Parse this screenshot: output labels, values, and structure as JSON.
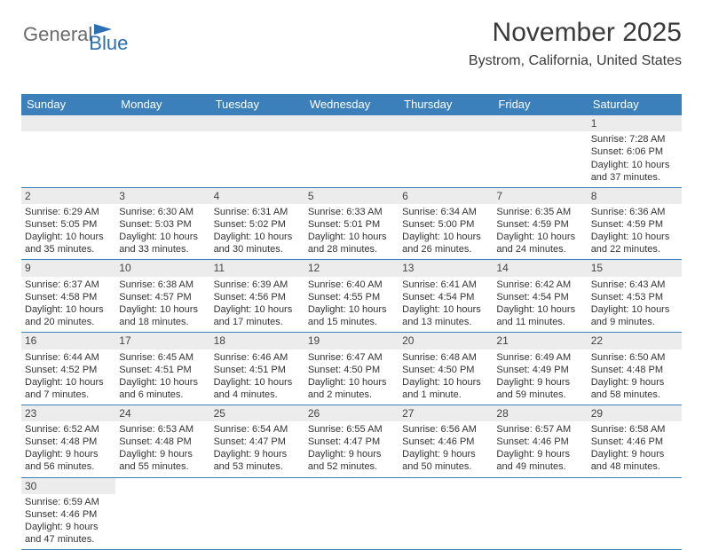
{
  "logo": {
    "part1": "General",
    "part2": "Blue"
  },
  "header": {
    "month_year": "November 2025",
    "location": "Bystrom, California, United States"
  },
  "colors": {
    "brand_blue": "#3b7fbb",
    "text": "#333333",
    "strip_bg": "#ececec",
    "bg": "#ffffff"
  },
  "weekdays": [
    "Sunday",
    "Monday",
    "Tuesday",
    "Wednesday",
    "Thursday",
    "Friday",
    "Saturday"
  ],
  "calendar": {
    "type": "table",
    "columns": 7,
    "weeks": [
      [
        null,
        null,
        null,
        null,
        null,
        null,
        {
          "n": "1",
          "sr": "Sunrise: 7:28 AM",
          "ss": "Sunset: 6:06 PM",
          "dl1": "Daylight: 10 hours",
          "dl2": "and 37 minutes."
        }
      ],
      [
        {
          "n": "2",
          "sr": "Sunrise: 6:29 AM",
          "ss": "Sunset: 5:05 PM",
          "dl1": "Daylight: 10 hours",
          "dl2": "and 35 minutes."
        },
        {
          "n": "3",
          "sr": "Sunrise: 6:30 AM",
          "ss": "Sunset: 5:03 PM",
          "dl1": "Daylight: 10 hours",
          "dl2": "and 33 minutes."
        },
        {
          "n": "4",
          "sr": "Sunrise: 6:31 AM",
          "ss": "Sunset: 5:02 PM",
          "dl1": "Daylight: 10 hours",
          "dl2": "and 30 minutes."
        },
        {
          "n": "5",
          "sr": "Sunrise: 6:33 AM",
          "ss": "Sunset: 5:01 PM",
          "dl1": "Daylight: 10 hours",
          "dl2": "and 28 minutes."
        },
        {
          "n": "6",
          "sr": "Sunrise: 6:34 AM",
          "ss": "Sunset: 5:00 PM",
          "dl1": "Daylight: 10 hours",
          "dl2": "and 26 minutes."
        },
        {
          "n": "7",
          "sr": "Sunrise: 6:35 AM",
          "ss": "Sunset: 4:59 PM",
          "dl1": "Daylight: 10 hours",
          "dl2": "and 24 minutes."
        },
        {
          "n": "8",
          "sr": "Sunrise: 6:36 AM",
          "ss": "Sunset: 4:59 PM",
          "dl1": "Daylight: 10 hours",
          "dl2": "and 22 minutes."
        }
      ],
      [
        {
          "n": "9",
          "sr": "Sunrise: 6:37 AM",
          "ss": "Sunset: 4:58 PM",
          "dl1": "Daylight: 10 hours",
          "dl2": "and 20 minutes."
        },
        {
          "n": "10",
          "sr": "Sunrise: 6:38 AM",
          "ss": "Sunset: 4:57 PM",
          "dl1": "Daylight: 10 hours",
          "dl2": "and 18 minutes."
        },
        {
          "n": "11",
          "sr": "Sunrise: 6:39 AM",
          "ss": "Sunset: 4:56 PM",
          "dl1": "Daylight: 10 hours",
          "dl2": "and 17 minutes."
        },
        {
          "n": "12",
          "sr": "Sunrise: 6:40 AM",
          "ss": "Sunset: 4:55 PM",
          "dl1": "Daylight: 10 hours",
          "dl2": "and 15 minutes."
        },
        {
          "n": "13",
          "sr": "Sunrise: 6:41 AM",
          "ss": "Sunset: 4:54 PM",
          "dl1": "Daylight: 10 hours",
          "dl2": "and 13 minutes."
        },
        {
          "n": "14",
          "sr": "Sunrise: 6:42 AM",
          "ss": "Sunset: 4:54 PM",
          "dl1": "Daylight: 10 hours",
          "dl2": "and 11 minutes."
        },
        {
          "n": "15",
          "sr": "Sunrise: 6:43 AM",
          "ss": "Sunset: 4:53 PM",
          "dl1": "Daylight: 10 hours",
          "dl2": "and 9 minutes."
        }
      ],
      [
        {
          "n": "16",
          "sr": "Sunrise: 6:44 AM",
          "ss": "Sunset: 4:52 PM",
          "dl1": "Daylight: 10 hours",
          "dl2": "and 7 minutes."
        },
        {
          "n": "17",
          "sr": "Sunrise: 6:45 AM",
          "ss": "Sunset: 4:51 PM",
          "dl1": "Daylight: 10 hours",
          "dl2": "and 6 minutes."
        },
        {
          "n": "18",
          "sr": "Sunrise: 6:46 AM",
          "ss": "Sunset: 4:51 PM",
          "dl1": "Daylight: 10 hours",
          "dl2": "and 4 minutes."
        },
        {
          "n": "19",
          "sr": "Sunrise: 6:47 AM",
          "ss": "Sunset: 4:50 PM",
          "dl1": "Daylight: 10 hours",
          "dl2": "and 2 minutes."
        },
        {
          "n": "20",
          "sr": "Sunrise: 6:48 AM",
          "ss": "Sunset: 4:50 PM",
          "dl1": "Daylight: 10 hours",
          "dl2": "and 1 minute."
        },
        {
          "n": "21",
          "sr": "Sunrise: 6:49 AM",
          "ss": "Sunset: 4:49 PM",
          "dl1": "Daylight: 9 hours",
          "dl2": "and 59 minutes."
        },
        {
          "n": "22",
          "sr": "Sunrise: 6:50 AM",
          "ss": "Sunset: 4:48 PM",
          "dl1": "Daylight: 9 hours",
          "dl2": "and 58 minutes."
        }
      ],
      [
        {
          "n": "23",
          "sr": "Sunrise: 6:52 AM",
          "ss": "Sunset: 4:48 PM",
          "dl1": "Daylight: 9 hours",
          "dl2": "and 56 minutes."
        },
        {
          "n": "24",
          "sr": "Sunrise: 6:53 AM",
          "ss": "Sunset: 4:48 PM",
          "dl1": "Daylight: 9 hours",
          "dl2": "and 55 minutes."
        },
        {
          "n": "25",
          "sr": "Sunrise: 6:54 AM",
          "ss": "Sunset: 4:47 PM",
          "dl1": "Daylight: 9 hours",
          "dl2": "and 53 minutes."
        },
        {
          "n": "26",
          "sr": "Sunrise: 6:55 AM",
          "ss": "Sunset: 4:47 PM",
          "dl1": "Daylight: 9 hours",
          "dl2": "and 52 minutes."
        },
        {
          "n": "27",
          "sr": "Sunrise: 6:56 AM",
          "ss": "Sunset: 4:46 PM",
          "dl1": "Daylight: 9 hours",
          "dl2": "and 50 minutes."
        },
        {
          "n": "28",
          "sr": "Sunrise: 6:57 AM",
          "ss": "Sunset: 4:46 PM",
          "dl1": "Daylight: 9 hours",
          "dl2": "and 49 minutes."
        },
        {
          "n": "29",
          "sr": "Sunrise: 6:58 AM",
          "ss": "Sunset: 4:46 PM",
          "dl1": "Daylight: 9 hours",
          "dl2": "and 48 minutes."
        }
      ],
      [
        {
          "n": "30",
          "sr": "Sunrise: 6:59 AM",
          "ss": "Sunset: 4:46 PM",
          "dl1": "Daylight: 9 hours",
          "dl2": "and 47 minutes."
        },
        null,
        null,
        null,
        null,
        null,
        null
      ]
    ]
  }
}
